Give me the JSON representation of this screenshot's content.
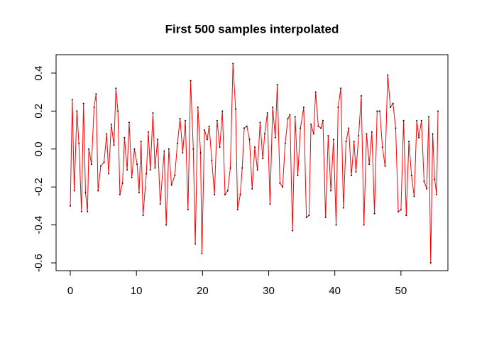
{
  "chart_data": {
    "type": "line",
    "title": "First 500 samples interpolated",
    "x": [
      0,
      0.3,
      0.6,
      1.0,
      1.3,
      1.7,
      2.0,
      2.3,
      2.6,
      2.8,
      3.2,
      3.6,
      3.9,
      4.2,
      4.6,
      5.1,
      5.5,
      5.8,
      6.2,
      6.6,
      6.9,
      7.2,
      7.5,
      7.9,
      8.2,
      8.6,
      8.9,
      9.3,
      9.7,
      10.1,
      10.4,
      10.7,
      11.0,
      11.5,
      11.8,
      12.1,
      12.5,
      12.8,
      13.2,
      13.6,
      14.2,
      14.5,
      14.9,
      15.3,
      15.8,
      16.2,
      16.6,
      17.0,
      17.4,
      17.8,
      18.2,
      18.6,
      18.9,
      19.3,
      19.7,
      19.9,
      20.3,
      20.7,
      21.0,
      21.4,
      21.8,
      22.2,
      22.6,
      23.0,
      23.4,
      23.8,
      24.2,
      24.6,
      25.0,
      25.3,
      25.7,
      26.0,
      26.3,
      26.7,
      27.1,
      27.5,
      27.9,
      28.3,
      28.7,
      29.1,
      29.4,
      29.8,
      30.2,
      30.6,
      31.0,
      31.3,
      31.7,
      32.1,
      32.5,
      32.9,
      33.2,
      33.6,
      34.0,
      34.4,
      34.8,
      35.3,
      35.7,
      36.1,
      36.4,
      36.8,
      37.1,
      37.5,
      37.9,
      38.2,
      38.6,
      39.0,
      39.4,
      39.8,
      40.2,
      40.5,
      40.9,
      41.3,
      41.7,
      42.1,
      42.5,
      42.9,
      43.2,
      43.6,
      44.0,
      44.4,
      44.8,
      45.2,
      45.6,
      46.0,
      46.4,
      46.8,
      47.2,
      47.6,
      48.0,
      48.4,
      48.8,
      49.2,
      49.6,
      50.0,
      50.4,
      50.8,
      51.2,
      51.6,
      52.0,
      52.4,
      52.7,
      53.1,
      53.5,
      53.9,
      54.2,
      54.5,
      54.8,
      55.1,
      55.4,
      55.6
    ],
    "series": [
      {
        "color": "#ff0000",
        "point_color": "#000000",
        "values": [
          -0.3,
          0.26,
          -0.22,
          0.2,
          0.03,
          -0.33,
          0.24,
          -0.23,
          -0.33,
          0.0,
          -0.08,
          0.22,
          0.29,
          -0.22,
          -0.09,
          -0.07,
          0.08,
          -0.13,
          0.13,
          0.02,
          0.32,
          0.2,
          -0.24,
          -0.18,
          0.06,
          -0.11,
          0.14,
          -0.15,
          0.0,
          -0.08,
          -0.23,
          0.04,
          -0.35,
          -0.13,
          0.09,
          -0.11,
          0.19,
          -0.1,
          0.05,
          -0.29,
          -0.01,
          -0.4,
          0.0,
          -0.19,
          -0.14,
          0.03,
          0.16,
          -0.02,
          0.15,
          -0.32,
          0.36,
          0.0,
          -0.5,
          0.22,
          -0.02,
          -0.55,
          0.1,
          0.05,
          0.12,
          -0.06,
          -0.24,
          0.15,
          0.01,
          0.2,
          -0.24,
          -0.22,
          -0.1,
          0.45,
          0.21,
          -0.32,
          -0.24,
          -0.1,
          0.11,
          0.12,
          0.05,
          -0.21,
          0.01,
          -0.11,
          0.14,
          -0.05,
          0.08,
          0.19,
          -0.29,
          0.22,
          0.06,
          0.34,
          -0.18,
          -0.2,
          0.03,
          0.16,
          0.18,
          -0.43,
          0.17,
          -0.14,
          0.11,
          0.22,
          -0.36,
          -0.35,
          0.13,
          0.08,
          0.3,
          0.12,
          0.11,
          0.15,
          -0.36,
          0.07,
          -0.22,
          0.05,
          -0.4,
          0.22,
          0.32,
          -0.31,
          0.04,
          0.11,
          -0.14,
          0.04,
          -0.12,
          0.07,
          0.28,
          -0.4,
          0.08,
          -0.08,
          0.09,
          -0.34,
          0.2,
          0.2,
          0.01,
          -0.09,
          0.39,
          0.22,
          0.24,
          0.11,
          -0.33,
          -0.32,
          0.15,
          -0.35,
          0.04,
          -0.14,
          -0.25,
          0.15,
          0.06,
          0.15,
          -0.17,
          -0.21,
          0.17,
          -0.6,
          0.08,
          -0.16,
          -0.24,
          0.2
        ]
      }
    ],
    "xlim": [
      -2.15,
      57.1
    ],
    "ylim": [
      -0.641,
      0.497
    ],
    "xticks": [
      0,
      10,
      20,
      30,
      40,
      50
    ],
    "yticks": [
      -0.6,
      -0.4,
      -0.2,
      {
        "value": 0,
        "label": "0.0"
      },
      0.2,
      0.4
    ]
  }
}
